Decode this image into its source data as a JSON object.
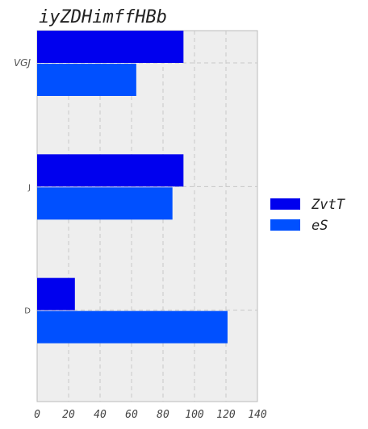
{
  "chart_data": {
    "type": "bar",
    "orientation": "horizontal",
    "title": "iyZDHimffHBb",
    "categories": [
      "VGJ",
      "J",
      "D"
    ],
    "series": [
      {
        "name": "ZvtT",
        "values": [
          93,
          93,
          24
        ],
        "color": "#0000ee"
      },
      {
        "name": "eS",
        "values": [
          63,
          86,
          121
        ],
        "color": "#0050ff"
      }
    ],
    "xlim": [
      0,
      140
    ],
    "xticks": [
      "0",
      "20",
      "40",
      "60",
      "80",
      "100",
      "120",
      "140"
    ],
    "grid": true,
    "legend_position": "right",
    "background": "#eeeeee"
  }
}
